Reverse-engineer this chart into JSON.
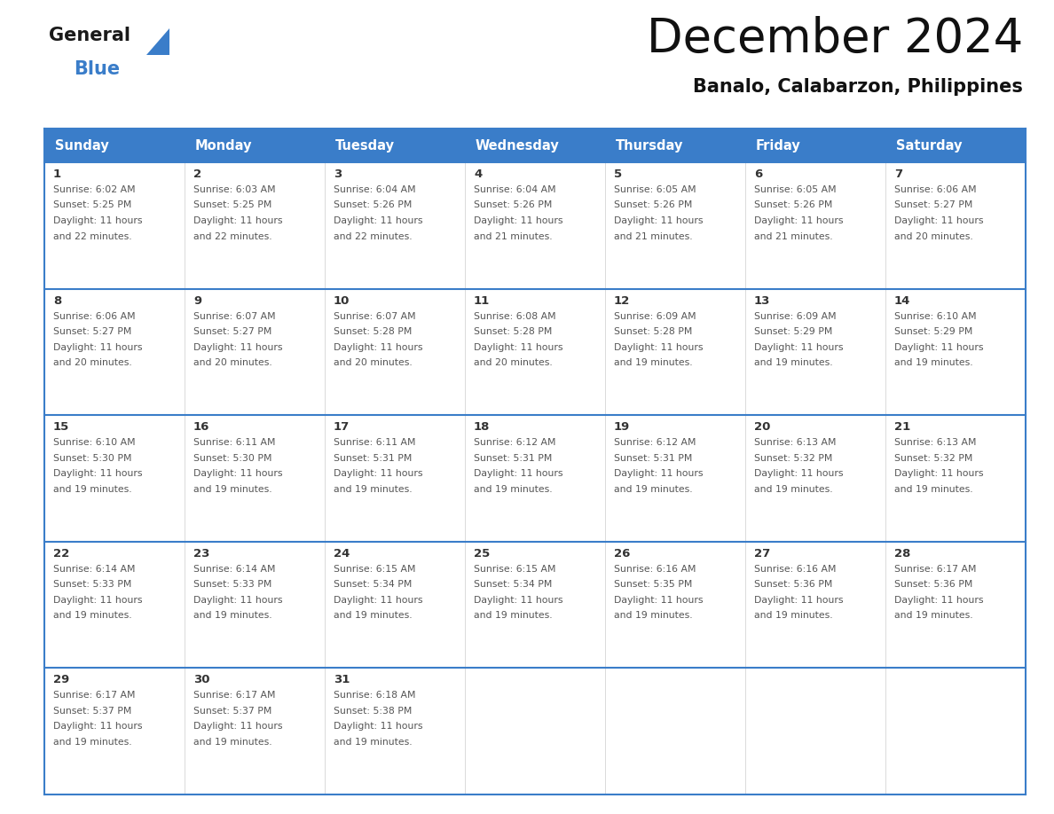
{
  "title": "December 2024",
  "subtitle": "Banalo, Calabarzon, Philippines",
  "header_color": "#3A7DC9",
  "header_text_color": "#FFFFFF",
  "days_of_week": [
    "Sunday",
    "Monday",
    "Tuesday",
    "Wednesday",
    "Thursday",
    "Friday",
    "Saturday"
  ],
  "border_color": "#3A7DC9",
  "text_color": "#555555",
  "day_num_color": "#333333",
  "calendar": [
    [
      {
        "day": 1,
        "sunrise": "6:02 AM",
        "sunset": "5:25 PM",
        "daylight": "11 hours and 22 minutes."
      },
      {
        "day": 2,
        "sunrise": "6:03 AM",
        "sunset": "5:25 PM",
        "daylight": "11 hours and 22 minutes."
      },
      {
        "day": 3,
        "sunrise": "6:04 AM",
        "sunset": "5:26 PM",
        "daylight": "11 hours and 22 minutes."
      },
      {
        "day": 4,
        "sunrise": "6:04 AM",
        "sunset": "5:26 PM",
        "daylight": "11 hours and 21 minutes."
      },
      {
        "day": 5,
        "sunrise": "6:05 AM",
        "sunset": "5:26 PM",
        "daylight": "11 hours and 21 minutes."
      },
      {
        "day": 6,
        "sunrise": "6:05 AM",
        "sunset": "5:26 PM",
        "daylight": "11 hours and 21 minutes."
      },
      {
        "day": 7,
        "sunrise": "6:06 AM",
        "sunset": "5:27 PM",
        "daylight": "11 hours and 20 minutes."
      }
    ],
    [
      {
        "day": 8,
        "sunrise": "6:06 AM",
        "sunset": "5:27 PM",
        "daylight": "11 hours and 20 minutes."
      },
      {
        "day": 9,
        "sunrise": "6:07 AM",
        "sunset": "5:27 PM",
        "daylight": "11 hours and 20 minutes."
      },
      {
        "day": 10,
        "sunrise": "6:07 AM",
        "sunset": "5:28 PM",
        "daylight": "11 hours and 20 minutes."
      },
      {
        "day": 11,
        "sunrise": "6:08 AM",
        "sunset": "5:28 PM",
        "daylight": "11 hours and 20 minutes."
      },
      {
        "day": 12,
        "sunrise": "6:09 AM",
        "sunset": "5:28 PM",
        "daylight": "11 hours and 19 minutes."
      },
      {
        "day": 13,
        "sunrise": "6:09 AM",
        "sunset": "5:29 PM",
        "daylight": "11 hours and 19 minutes."
      },
      {
        "day": 14,
        "sunrise": "6:10 AM",
        "sunset": "5:29 PM",
        "daylight": "11 hours and 19 minutes."
      }
    ],
    [
      {
        "day": 15,
        "sunrise": "6:10 AM",
        "sunset": "5:30 PM",
        "daylight": "11 hours and 19 minutes."
      },
      {
        "day": 16,
        "sunrise": "6:11 AM",
        "sunset": "5:30 PM",
        "daylight": "11 hours and 19 minutes."
      },
      {
        "day": 17,
        "sunrise": "6:11 AM",
        "sunset": "5:31 PM",
        "daylight": "11 hours and 19 minutes."
      },
      {
        "day": 18,
        "sunrise": "6:12 AM",
        "sunset": "5:31 PM",
        "daylight": "11 hours and 19 minutes."
      },
      {
        "day": 19,
        "sunrise": "6:12 AM",
        "sunset": "5:31 PM",
        "daylight": "11 hours and 19 minutes."
      },
      {
        "day": 20,
        "sunrise": "6:13 AM",
        "sunset": "5:32 PM",
        "daylight": "11 hours and 19 minutes."
      },
      {
        "day": 21,
        "sunrise": "6:13 AM",
        "sunset": "5:32 PM",
        "daylight": "11 hours and 19 minutes."
      }
    ],
    [
      {
        "day": 22,
        "sunrise": "6:14 AM",
        "sunset": "5:33 PM",
        "daylight": "11 hours and 19 minutes."
      },
      {
        "day": 23,
        "sunrise": "6:14 AM",
        "sunset": "5:33 PM",
        "daylight": "11 hours and 19 minutes."
      },
      {
        "day": 24,
        "sunrise": "6:15 AM",
        "sunset": "5:34 PM",
        "daylight": "11 hours and 19 minutes."
      },
      {
        "day": 25,
        "sunrise": "6:15 AM",
        "sunset": "5:34 PM",
        "daylight": "11 hours and 19 minutes."
      },
      {
        "day": 26,
        "sunrise": "6:16 AM",
        "sunset": "5:35 PM",
        "daylight": "11 hours and 19 minutes."
      },
      {
        "day": 27,
        "sunrise": "6:16 AM",
        "sunset": "5:36 PM",
        "daylight": "11 hours and 19 minutes."
      },
      {
        "day": 28,
        "sunrise": "6:17 AM",
        "sunset": "5:36 PM",
        "daylight": "11 hours and 19 minutes."
      }
    ],
    [
      {
        "day": 29,
        "sunrise": "6:17 AM",
        "sunset": "5:37 PM",
        "daylight": "11 hours and 19 minutes."
      },
      {
        "day": 30,
        "sunrise": "6:17 AM",
        "sunset": "5:37 PM",
        "daylight": "11 hours and 19 minutes."
      },
      {
        "day": 31,
        "sunrise": "6:18 AM",
        "sunset": "5:38 PM",
        "daylight": "11 hours and 19 minutes."
      },
      null,
      null,
      null,
      null
    ]
  ],
  "logo_triangle_color": "#3A7DC9",
  "fig_width": 11.88,
  "fig_height": 9.18
}
